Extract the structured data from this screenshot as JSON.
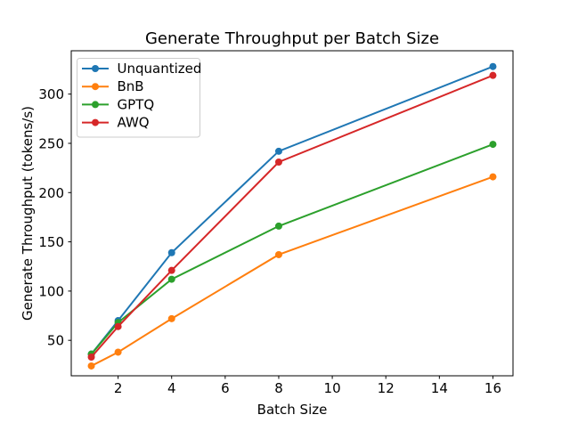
{
  "chart_data": {
    "type": "line",
    "title": "Generate Throughput per Batch Size",
    "xlabel": "Batch Size",
    "ylabel": "Generate Throughput (tokens/s)",
    "x": [
      1,
      2,
      4,
      8,
      16
    ],
    "series": [
      {
        "name": "Unquantized",
        "color": "#1f77b4",
        "values": [
          36,
          70,
          139,
          242,
          328
        ]
      },
      {
        "name": "BnB",
        "color": "#ff7f0e",
        "values": [
          24,
          38,
          72,
          137,
          216
        ]
      },
      {
        "name": "GPTQ",
        "color": "#2ca02c",
        "values": [
          36,
          68,
          112,
          166,
          249
        ]
      },
      {
        "name": "AWQ",
        "color": "#d62728",
        "values": [
          33,
          64,
          121,
          231,
          319
        ]
      }
    ],
    "x_ticks": [
      2,
      4,
      6,
      8,
      10,
      12,
      14,
      16
    ],
    "y_ticks": [
      50,
      100,
      150,
      200,
      250,
      300
    ],
    "xlim": [
      0.25,
      16.75
    ],
    "ylim": [
      14,
      344
    ],
    "grid": false,
    "legend_position": "upper left",
    "marker": "o",
    "axis_color": "#000000",
    "legend_border_color": "#cccccc",
    "background_color": "#ffffff"
  }
}
